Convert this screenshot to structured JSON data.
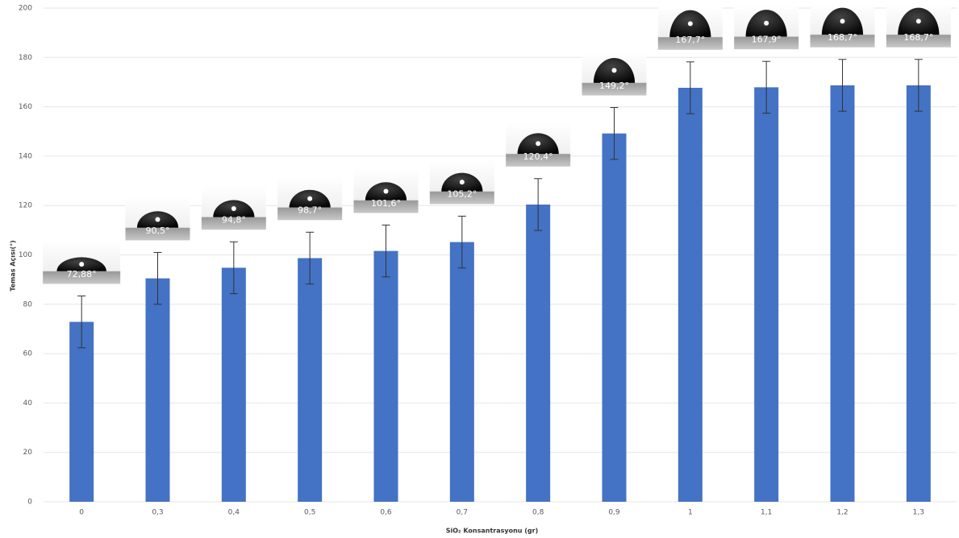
{
  "chart_data": {
    "type": "bar",
    "x_label": "SiO₂ Konsantrasyonu  (gr)",
    "y_label": "Temas Açısı(°)",
    "categories": [
      "0",
      "0,3",
      "0,4",
      "0,5",
      "0,6",
      "0,7",
      "0,8",
      "0,9",
      "1",
      "1,1",
      "1,2",
      "1,3"
    ],
    "values": [
      72.88,
      90.5,
      94.8,
      98.7,
      101.6,
      105.2,
      120.4,
      149.2,
      167.7,
      167.9,
      168.7,
      168.7
    ],
    "value_labels": [
      "72,88°",
      "90,5°",
      "94,8°",
      "98,7°",
      "101,6°",
      "105,2°",
      "120,4°",
      "149,2°",
      "167,7°",
      "167,9°",
      "168,7°",
      "168,7°"
    ],
    "errors": [
      10.5,
      10.5,
      10.5,
      10.5,
      10.5,
      10.5,
      10.5,
      10.5,
      10.5,
      10.5,
      10.5,
      10.5
    ],
    "color": "#4472c4",
    "ylim": [
      0,
      200
    ],
    "yticks": [
      0,
      20,
      40,
      60,
      80,
      100,
      120,
      140,
      160,
      180,
      200
    ],
    "grid": true
  }
}
